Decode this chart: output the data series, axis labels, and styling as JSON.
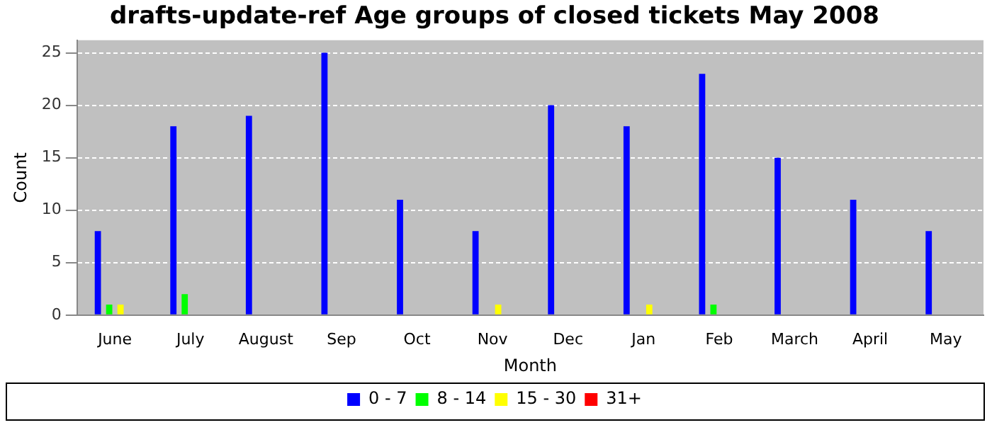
{
  "chart_data": {
    "type": "bar",
    "title": "drafts-update-ref Age groups of closed tickets May 2008",
    "xlabel": "Month",
    "ylabel": "Count",
    "categories": [
      "June",
      "July",
      "August",
      "Sep",
      "Oct",
      "Nov",
      "Dec",
      "Jan",
      "Feb",
      "March",
      "April",
      "May"
    ],
    "series": [
      {
        "name": "0 - 7",
        "color": "#0000ff",
        "values": [
          8,
          18,
          19,
          25,
          11,
          8,
          20,
          18,
          23,
          15,
          11,
          8
        ]
      },
      {
        "name": "8 - 14",
        "color": "#00ff00",
        "values": [
          1,
          2,
          0,
          0,
          0,
          0,
          0,
          0,
          1,
          0,
          0,
          0
        ]
      },
      {
        "name": "15 - 30",
        "color": "#ffff00",
        "values": [
          1,
          0,
          0,
          0,
          0,
          1,
          0,
          1,
          0,
          0,
          0,
          0
        ]
      },
      {
        "name": "31+",
        "color": "#ff0000",
        "values": [
          0,
          0,
          0,
          0,
          0,
          0,
          0,
          0,
          0,
          0,
          0,
          0
        ]
      }
    ],
    "ylim": [
      0,
      26.2
    ],
    "yticks": [
      0,
      5,
      10,
      15,
      20,
      25
    ],
    "grid": "y",
    "legend": "bottom"
  }
}
